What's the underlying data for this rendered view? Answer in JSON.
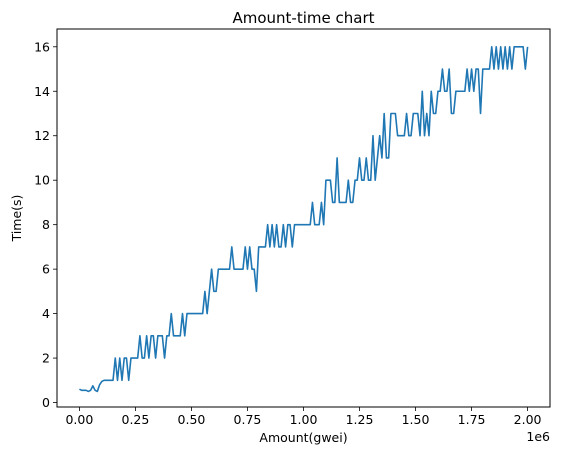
{
  "chart_data": {
    "type": "line",
    "title": "Amount-time chart",
    "xlabel": "Amount(gwei)",
    "ylabel": "Time(s)",
    "x_offset_label": "1e6",
    "xlim": [
      -100000,
      2100000
    ],
    "ylim": [
      -0.2,
      16.8
    ],
    "x_ticks": [
      0,
      250000,
      500000,
      750000,
      1000000,
      1250000,
      1500000,
      1750000,
      2000000
    ],
    "x_tick_labels": [
      "0.00",
      "0.25",
      "0.50",
      "0.75",
      "1.00",
      "1.25",
      "1.50",
      "1.75",
      "2.00"
    ],
    "y_ticks": [
      0,
      2,
      4,
      6,
      8,
      10,
      12,
      14,
      16
    ],
    "y_tick_labels": [
      "0",
      "2",
      "4",
      "6",
      "8",
      "10",
      "12",
      "14",
      "16"
    ],
    "grid": false,
    "legend": "none",
    "line_color": "#1f77b4",
    "series": [
      {
        "x": [
          0,
          10000,
          20000,
          30000,
          40000,
          50000,
          60000,
          70000,
          80000,
          90000,
          100000,
          110000,
          120000,
          130000,
          140000,
          150000,
          160000,
          170000,
          180000,
          190000,
          200000,
          210000,
          220000,
          230000,
          240000,
          250000,
          260000,
          270000,
          280000,
          290000,
          300000,
          310000,
          320000,
          330000,
          340000,
          350000,
          360000,
          370000,
          380000,
          390000,
          400000,
          410000,
          420000,
          430000,
          440000,
          450000,
          460000,
          470000,
          480000,
          490000,
          500000,
          510000,
          520000,
          530000,
          540000,
          550000,
          560000,
          570000,
          580000,
          590000,
          600000,
          610000,
          620000,
          630000,
          640000,
          650000,
          660000,
          670000,
          680000,
          690000,
          700000,
          710000,
          720000,
          730000,
          740000,
          750000,
          760000,
          770000,
          780000,
          790000,
          800000,
          810000,
          820000,
          830000,
          840000,
          850000,
          860000,
          870000,
          880000,
          890000,
          900000,
          910000,
          920000,
          930000,
          940000,
          950000,
          960000,
          970000,
          980000,
          990000,
          1000000,
          1010000,
          1020000,
          1030000,
          1040000,
          1050000,
          1060000,
          1070000,
          1080000,
          1090000,
          1100000,
          1110000,
          1120000,
          1130000,
          1140000,
          1150000,
          1160000,
          1170000,
          1180000,
          1190000,
          1200000,
          1210000,
          1220000,
          1230000,
          1240000,
          1250000,
          1260000,
          1270000,
          1280000,
          1290000,
          1300000,
          1310000,
          1320000,
          1330000,
          1340000,
          1350000,
          1360000,
          1370000,
          1380000,
          1390000,
          1400000,
          1410000,
          1420000,
          1430000,
          1440000,
          1450000,
          1460000,
          1470000,
          1480000,
          1490000,
          1500000,
          1510000,
          1520000,
          1530000,
          1540000,
          1550000,
          1560000,
          1570000,
          1580000,
          1590000,
          1600000,
          1610000,
          1620000,
          1630000,
          1640000,
          1650000,
          1660000,
          1670000,
          1680000,
          1690000,
          1700000,
          1710000,
          1720000,
          1730000,
          1740000,
          1750000,
          1760000,
          1770000,
          1780000,
          1790000,
          1800000,
          1810000,
          1820000,
          1830000,
          1840000,
          1850000,
          1860000,
          1870000,
          1880000,
          1890000,
          1900000,
          1910000,
          1920000,
          1930000,
          1940000,
          1950000,
          1960000,
          1970000,
          1980000,
          1990000,
          2000000
        ],
        "y": [
          0.6,
          0.55,
          0.55,
          0.55,
          0.5,
          0.55,
          0.75,
          0.55,
          0.5,
          0.8,
          0.95,
          1,
          1,
          1,
          1,
          1,
          2,
          1,
          2,
          1,
          2,
          2,
          1,
          2,
          2,
          2,
          2,
          3,
          2,
          2,
          3,
          2,
          3,
          3,
          2,
          3,
          3,
          3,
          2,
          3,
          3,
          4,
          3,
          3,
          3,
          3,
          4,
          3,
          4,
          4,
          4,
          4,
          4,
          4,
          4,
          4,
          5,
          4,
          5,
          6,
          5,
          5,
          6,
          6,
          6,
          6,
          6,
          6,
          7,
          6,
          6,
          6,
          6,
          6,
          7,
          6,
          7,
          6,
          6,
          5,
          7,
          7,
          7,
          7,
          8,
          7,
          8,
          7,
          8,
          7,
          7,
          8,
          7,
          8,
          8,
          7,
          8,
          8,
          8,
          8,
          8,
          8,
          8,
          8,
          9,
          8,
          8,
          8,
          9,
          8,
          10,
          10,
          10,
          9,
          9,
          11,
          9,
          9,
          9,
          9,
          10,
          9,
          9,
          10,
          10,
          11,
          10,
          10,
          11,
          10,
          10,
          12,
          10,
          11,
          12,
          11,
          13,
          11,
          11,
          13,
          13,
          13,
          12,
          12,
          12,
          12,
          13,
          12,
          12,
          13,
          13,
          13,
          12,
          14,
          12,
          13,
          12,
          14,
          13,
          13,
          14,
          14,
          15,
          14,
          14,
          15,
          13,
          13,
          14,
          14,
          14,
          14,
          14,
          15,
          14,
          15,
          14,
          15,
          15,
          13,
          15,
          15,
          15,
          15,
          16,
          15,
          16,
          15,
          16,
          15,
          16,
          15,
          16,
          15,
          16,
          16,
          16,
          16,
          16,
          15,
          16
        ]
      }
    ]
  }
}
